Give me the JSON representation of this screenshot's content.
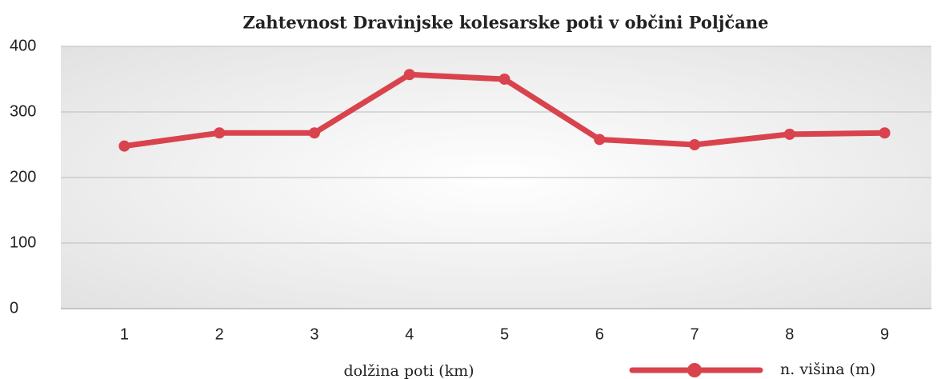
{
  "chart_data": {
    "type": "line",
    "title": "Zahtevnost Dravinjske kolesarske poti v občini Poljčane",
    "x_label": "dolžina poti (km)",
    "categories": [
      "1",
      "2",
      "3",
      "4",
      "5",
      "6",
      "7",
      "8",
      "9"
    ],
    "series": [
      {
        "name": "n. višina (m)",
        "color": "#d9434d",
        "values": [
          248,
          268,
          268,
          357,
          350,
          258,
          250,
          266,
          268
        ]
      }
    ],
    "ylim": [
      0,
      400
    ],
    "yticks": [
      0,
      100,
      200,
      300,
      400
    ],
    "grid": true,
    "legend": "bottom-right"
  }
}
